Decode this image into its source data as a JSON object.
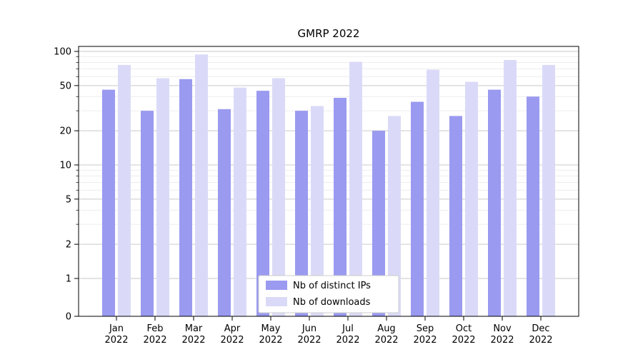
{
  "chart_data": {
    "type": "bar",
    "title": "GMRP 2022",
    "categories": [
      "Jan 2022",
      "Feb 2022",
      "Mar 2022",
      "Apr 2022",
      "May 2022",
      "Jun 2022",
      "Jul 2022",
      "Aug 2022",
      "Sep 2022",
      "Oct 2022",
      "Nov 2022",
      "Dec 2022"
    ],
    "series": [
      {
        "name": "Nb of distinct IPs",
        "color": "#9a9af0",
        "values": [
          46,
          30,
          57,
          31,
          45,
          30,
          39,
          20,
          36,
          27,
          46,
          40
        ]
      },
      {
        "name": "Nb of downloads",
        "color": "#dadaf8",
        "values": [
          76,
          58,
          94,
          48,
          58,
          33,
          81,
          27,
          69,
          54,
          84,
          76
        ]
      }
    ],
    "yscale": "symlog",
    "yticks": [
      0,
      1,
      2,
      5,
      10,
      20,
      50,
      100
    ],
    "minor_yticks": [
      3,
      4,
      6,
      7,
      8,
      9,
      30,
      40,
      60,
      70,
      80,
      90
    ],
    "ylim": [
      0,
      110
    ],
    "grid": true,
    "legend_position": "lower center",
    "colors": {
      "axis": "#000000",
      "major_grid": "#c9c9c9",
      "minor_grid": "#e7e7e7",
      "legend_border": "#cccccc",
      "legend_bg": "#ffffff"
    }
  }
}
